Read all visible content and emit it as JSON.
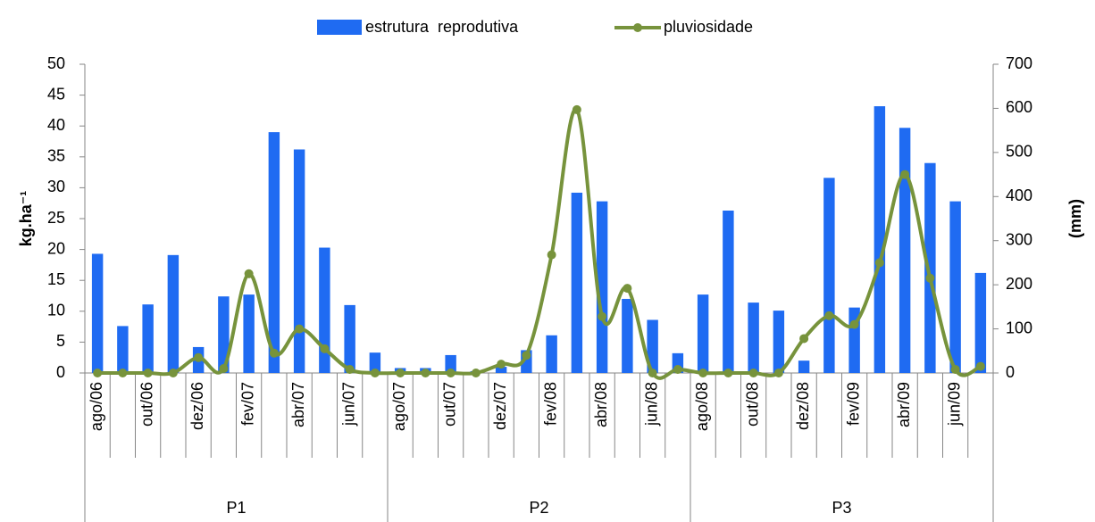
{
  "chart_data": {
    "type": "bar_line",
    "categories": [
      "ago/06",
      null,
      "out/06",
      null,
      "dez/06",
      null,
      "fev/07",
      null,
      "abr/07",
      null,
      "jun/07",
      null,
      "ago/07",
      null,
      "out/07",
      null,
      "dez/07",
      null,
      "fev/08",
      null,
      "abr/08",
      null,
      "jun/08",
      null,
      "ago/08",
      null,
      "out/08",
      null,
      "dez/08",
      null,
      "fev/09",
      null,
      "abr/09",
      null,
      "jun/09",
      null
    ],
    "groups": [
      "P1",
      "P2",
      "P3"
    ],
    "y_label": "kg.ha⁻¹",
    "y2_label": "(mm)",
    "series": [
      {
        "name": "estrutura  reprodutiva",
        "type": "bar",
        "color": "#1f6bf2",
        "values": [
          19.3,
          7.6,
          11.1,
          19.1,
          4.2,
          12.4,
          12.7,
          39,
          36.2,
          20.3,
          11,
          3.3,
          0.8,
          0.8,
          2.9,
          0.3,
          1.0,
          3.7,
          6.1,
          29.2,
          27.8,
          12,
          8.6,
          3.2,
          12.7,
          26.3,
          11.4,
          10.1,
          2.0,
          31.6,
          10.6,
          43.2,
          39.7,
          34,
          27.8,
          16.2
        ]
      },
      {
        "name": "pluviosidade",
        "type": "line",
        "axis": "y2",
        "color": "#77933c",
        "values": [
          0,
          0,
          0,
          0,
          35,
          10,
          225,
          45,
          100,
          55,
          8,
          0,
          0,
          0,
          0,
          0,
          20,
          40,
          268,
          597,
          128,
          192,
          0,
          8,
          0,
          0,
          0,
          0,
          78,
          130,
          110,
          250,
          450,
          215,
          8,
          15
        ]
      }
    ],
    "ylim": [
      0,
      50
    ],
    "yticks": [
      0,
      5,
      10,
      15,
      20,
      25,
      30,
      35,
      40,
      45,
      50
    ],
    "y2lim": [
      0,
      700
    ],
    "y2ticks": [
      0,
      100,
      200,
      300,
      400,
      500,
      600,
      700
    ],
    "legend": "top"
  }
}
